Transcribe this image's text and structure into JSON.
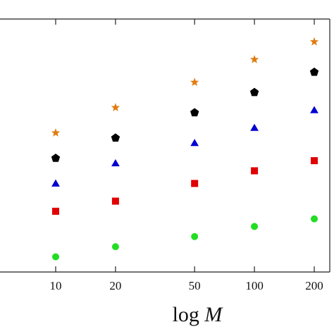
{
  "chart_data": {
    "type": "scatter",
    "xscale": "log",
    "x": [
      10,
      20,
      50,
      100,
      200
    ],
    "xticks": [
      "10",
      "20",
      "50",
      "100",
      "200"
    ],
    "xlabel_prefix": "log",
    "xlabel_var": "M",
    "ylabel": "",
    "y_range": [
      0,
      1
    ],
    "grid": false,
    "series": [
      {
        "marker": "star",
        "color": "#e07b10",
        "values": [
          0.55,
          0.65,
          0.75,
          0.84,
          0.91
        ]
      },
      {
        "marker": "pentagon",
        "color": "#000000",
        "values": [
          0.45,
          0.53,
          0.63,
          0.71,
          0.79
        ]
      },
      {
        "marker": "triangle",
        "color": "#0000d0",
        "values": [
          0.35,
          0.43,
          0.51,
          0.57,
          0.64
        ]
      },
      {
        "marker": "square",
        "color": "#e00000",
        "values": [
          0.24,
          0.28,
          0.35,
          0.4,
          0.44
        ]
      },
      {
        "marker": "circle",
        "color": "#22dd22",
        "values": [
          0.06,
          0.1,
          0.14,
          0.18,
          0.21
        ]
      }
    ]
  }
}
